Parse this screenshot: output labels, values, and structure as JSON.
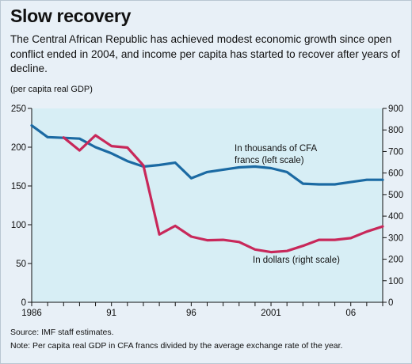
{
  "chart_data": {
    "type": "line",
    "title": "Slow recovery",
    "subtitle": "The Central African Republic has achieved modest economic growth since open conflict ended in 2004, and income per capita has started to recover after years of decline.",
    "unit_label": "(per capita real GDP)",
    "x": [
      1986,
      1987,
      1988,
      1989,
      1990,
      1991,
      1992,
      1993,
      1994,
      1995,
      1996,
      1997,
      1998,
      1999,
      2000,
      2001,
      2002,
      2003,
      2004,
      2005,
      2006,
      2007,
      2008
    ],
    "x_tick_labels": [
      {
        "value": 1986,
        "label": "1986"
      },
      {
        "value": 1991,
        "label": "91"
      },
      {
        "value": 1996,
        "label": "96"
      },
      {
        "value": 2001,
        "label": "2001"
      },
      {
        "value": 2006,
        "label": "06"
      }
    ],
    "xlim": [
      1986,
      2008
    ],
    "y_left_ticks": [
      0,
      50,
      100,
      150,
      200,
      250
    ],
    "y_left_lim": [
      0,
      250
    ],
    "y_right_ticks": [
      0,
      100,
      200,
      300,
      400,
      500,
      600,
      700,
      800,
      900
    ],
    "y_right_lim": [
      0,
      900
    ],
    "series": [
      {
        "name": "In thousands of CFA francs (left scale)",
        "label_lines": [
          "In thousands of CFA",
          "francs (left scale)"
        ],
        "axis": "left",
        "color": "#1b6aa3",
        "x": [
          1986,
          1987,
          1988,
          1989,
          1990,
          1991,
          1992,
          1993,
          1994,
          1995,
          1996,
          1997,
          1998,
          1999,
          2000,
          2001,
          2002,
          2003,
          2004,
          2005,
          2006,
          2007,
          2008
        ],
        "values": [
          228,
          213,
          212,
          211,
          200,
          192,
          182,
          175,
          177,
          180,
          160,
          168,
          171,
          174,
          175,
          173,
          168,
          153,
          152,
          152,
          155,
          158,
          158
        ]
      },
      {
        "name": "In dollars (right scale)",
        "label_lines": [
          "In dollars (right scale)"
        ],
        "axis": "right",
        "color": "#c8285a",
        "x": [
          1988,
          1989,
          1990,
          1991,
          1992,
          1993,
          1994,
          1995,
          1996,
          1997,
          1998,
          1999,
          2000,
          2001,
          2002,
          2003,
          2004,
          2005,
          2006,
          2007,
          2008
        ],
        "values": [
          765,
          705,
          775,
          725,
          718,
          635,
          315,
          355,
          305,
          288,
          290,
          280,
          245,
          233,
          238,
          262,
          290,
          290,
          298,
          328,
          352
        ]
      }
    ],
    "grid": false,
    "plot_background": "#d7eef5"
  },
  "footer": {
    "source": "Source: IMF staff estimates.",
    "note": "Note: Per capita real GDP in CFA francs divided by the average exchange rate of the year."
  }
}
